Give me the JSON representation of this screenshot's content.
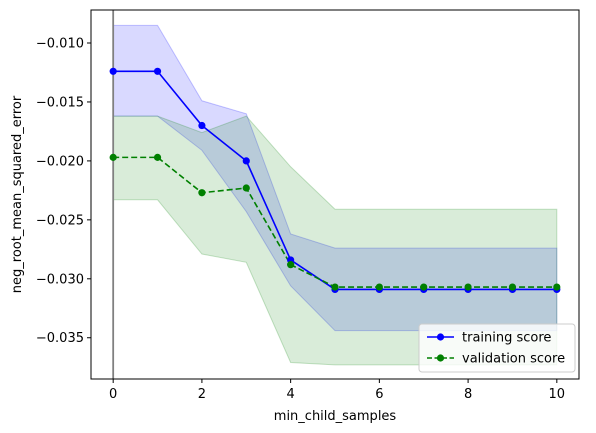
{
  "chart_data": {
    "type": "line",
    "title": "",
    "xlabel": "min_child_samples",
    "ylabel": "neg_root_mean_squared_error",
    "xlim": [
      -0.5,
      10.5
    ],
    "ylim": [
      -0.0385,
      -0.0072
    ],
    "xticks": [
      0,
      2,
      4,
      6,
      8,
      10
    ],
    "xtick_labels": [
      "0",
      "2",
      "4",
      "6",
      "8",
      "10"
    ],
    "yticks": [
      -0.01,
      -0.015,
      -0.02,
      -0.025,
      -0.03,
      -0.035
    ],
    "ytick_labels": [
      "−0.010",
      "−0.015",
      "−0.020",
      "−0.025",
      "−0.030",
      "−0.035"
    ],
    "grid": false,
    "legend_position": "lower-right",
    "vertical_line_x": 0,
    "x": [
      0,
      1,
      2,
      3,
      4,
      5,
      6,
      7,
      8,
      9,
      10
    ],
    "series": [
      {
        "name": "training score",
        "color": "#0000ff",
        "linestyle": "solid",
        "marker": "circle",
        "values": [
          -0.0124,
          -0.0124,
          -0.017,
          -0.02,
          -0.0284,
          -0.0309,
          -0.0309,
          -0.0309,
          -0.0309,
          -0.0309,
          -0.0309
        ],
        "band_upper": [
          -0.0085,
          -0.0085,
          -0.0149,
          -0.016,
          -0.0262,
          -0.0274,
          -0.0274,
          -0.0274,
          -0.0274,
          -0.0274,
          -0.0274
        ],
        "band_lower": [
          -0.0162,
          -0.0162,
          -0.0191,
          -0.0243,
          -0.0306,
          -0.0344,
          -0.0344,
          -0.0344,
          -0.0344,
          -0.0344,
          -0.0344
        ]
      },
      {
        "name": "validation score",
        "color": "#008000",
        "linestyle": "dashed",
        "marker": "circle",
        "values": [
          -0.0197,
          -0.0197,
          -0.0227,
          -0.0223,
          -0.0288,
          -0.0307,
          -0.0307,
          -0.0307,
          -0.0307,
          -0.0307,
          -0.0307
        ],
        "band_upper": [
          -0.0162,
          -0.0162,
          -0.0176,
          -0.0162,
          -0.0205,
          -0.0241,
          -0.0241,
          -0.0241,
          -0.0241,
          -0.0241,
          -0.0241
        ],
        "band_lower": [
          -0.0233,
          -0.0233,
          -0.0279,
          -0.0286,
          -0.0371,
          -0.0373,
          -0.0373,
          -0.0373,
          -0.0373,
          -0.0373,
          -0.0373
        ]
      }
    ]
  }
}
